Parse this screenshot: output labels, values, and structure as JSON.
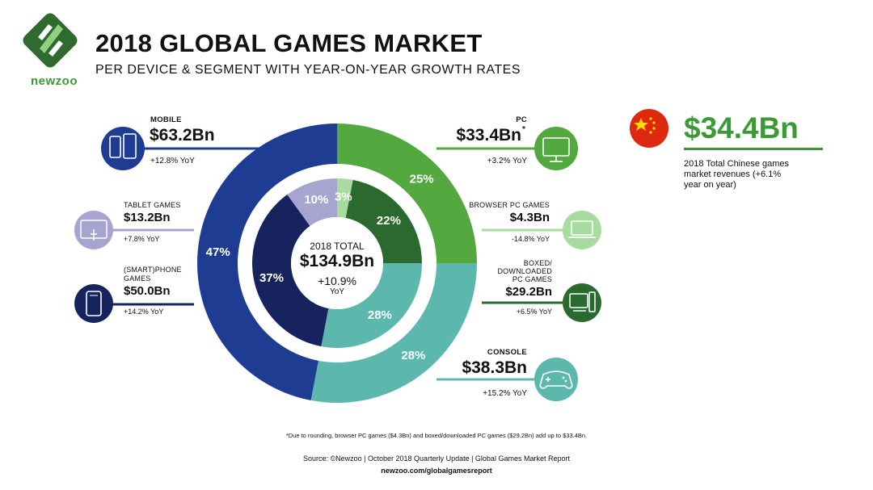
{
  "title": "2018 GLOBAL GAMES MARKET",
  "subtitle": "PER DEVICE & SEGMENT WITH YEAR-ON-YEAR GROWTH RATES",
  "logo_text": "newzoo",
  "center": {
    "label": "2018 TOTAL",
    "value": "$134.9Bn",
    "growth": "+10.9%",
    "growth_unit": "YoY"
  },
  "segments": {
    "mobile": {
      "label": "MOBILE",
      "value": "$63.2Bn",
      "yoy": "+12.8% YoY"
    },
    "tablet": {
      "label": "TABLET GAMES",
      "value": "$13.2Bn",
      "yoy": "+7.8% YoY"
    },
    "phone": {
      "label_l1": "(SMART)PHONE",
      "label_l2": "GAMES",
      "value": "$50.0Bn",
      "yoy": "+14.2% YoY"
    },
    "pc": {
      "label": "PC",
      "value": "$33.4Bn",
      "star": "*",
      "yoy": "+3.2% YoY"
    },
    "browser": {
      "label": "BROWSER PC GAMES",
      "value": "$4.3Bn",
      "yoy": "-14.8% YoY"
    },
    "boxed": {
      "label_l1": "BOXED/",
      "label_l2": "DOWNLOADED",
      "label_l3": "PC GAMES",
      "value": "$29.2Bn",
      "yoy": "+6.5% YoY"
    },
    "console": {
      "label": "CONSOLE",
      "value": "$38.3Bn",
      "yoy": "+15.2% YoY"
    }
  },
  "china": {
    "value": "$34.4Bn",
    "text_l1": "2018 Total Chinese games",
    "text_l2": "market revenues (+6.1%",
    "text_l3": "year on year)"
  },
  "footnote": "*Due to rounding, browser PC games ($4.3Bn) and boxed/downloaded PC games ($29.2Bn) add up to $33.4Bn.",
  "source": "Source: ©Newzoo | October 2018 Quarterly Update | Global Games Market Report",
  "url": "newzoo.com/globalgamesreport",
  "colors": {
    "pc": "#53a93f",
    "console": "#5cb8ad",
    "mobile": "#1f3c93",
    "browser": "#a8dba0",
    "boxed": "#2a6a2f",
    "tablet": "#a7a5cf",
    "phone": "#16235c"
  },
  "chart_data": {
    "type": "pie",
    "title": "2018 GLOBAL GAMES MARKET",
    "outer": [
      {
        "name": "PC",
        "value": 25,
        "label": "25%"
      },
      {
        "name": "CONSOLE",
        "value": 28,
        "label": "28%"
      },
      {
        "name": "MOBILE",
        "value": 47,
        "label": "47%"
      }
    ],
    "inner": [
      {
        "name": "BROWSER PC GAMES",
        "value": 3,
        "label": "3%"
      },
      {
        "name": "BOXED/DOWNLOADED PC GAMES",
        "value": 22,
        "label": "22%"
      },
      {
        "name": "CONSOLE",
        "value": 28,
        "label": "28%"
      },
      {
        "name": "(SMART)PHONE GAMES",
        "value": 37,
        "label": "37%"
      },
      {
        "name": "TABLET GAMES",
        "value": 10,
        "label": "10%"
      }
    ]
  }
}
